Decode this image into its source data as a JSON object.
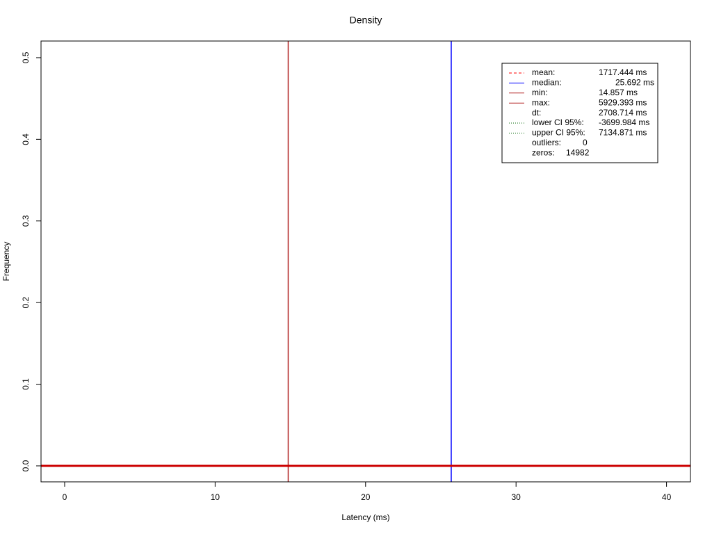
{
  "chart_data": {
    "type": "density",
    "title": "Density",
    "x_label": "Latency (ms)",
    "y_label": "Frequency",
    "xlim": [
      -1.57,
      41.59
    ],
    "ylim": [
      -0.0196,
      0.5204
    ],
    "xticks": [
      0,
      10,
      20,
      30,
      40
    ],
    "yticks": [
      {
        "value": 0,
        "label": "0.0"
      },
      0.1,
      0.2,
      0.3,
      0.4,
      0.5
    ],
    "series": [
      {
        "name": "density",
        "color": "#cc0000",
        "x": [
          -1.57,
          41.59
        ],
        "values": [
          0,
          0
        ]
      }
    ],
    "legend": [
      {
        "label": "mean:",
        "value": 1717.444,
        "value_label": "1717.444 ms",
        "color": "#ff0000",
        "lty": "dashed"
      },
      {
        "label": "median:",
        "value": 25.692,
        "value_label": "25.692 ms",
        "color": "#0000ff",
        "lty": "solid"
      },
      {
        "label": "min:",
        "value": 14.857,
        "value_label": "14.857 ms",
        "color": "#b22222",
        "lty": "solid"
      },
      {
        "label": "max:",
        "value": 5929.393,
        "value_label": "5929.393 ms",
        "color": "#b22222",
        "lty": "solid"
      },
      {
        "label": "dt:",
        "value": 2708.714,
        "value_label": "2708.714 ms"
      },
      {
        "label": "lower CI 95%:",
        "value": -3699.984,
        "value_label": "-3699.984 ms",
        "color": "#006400",
        "lty": "dotted"
      },
      {
        "label": "upper CI 95%:",
        "value": 7134.871,
        "value_label": "7134.871 ms",
        "color": "#006400",
        "lty": "dotted"
      },
      {
        "label": "outliers:",
        "value": 0
      },
      {
        "label": "zeros:",
        "value": 14982
      }
    ]
  }
}
